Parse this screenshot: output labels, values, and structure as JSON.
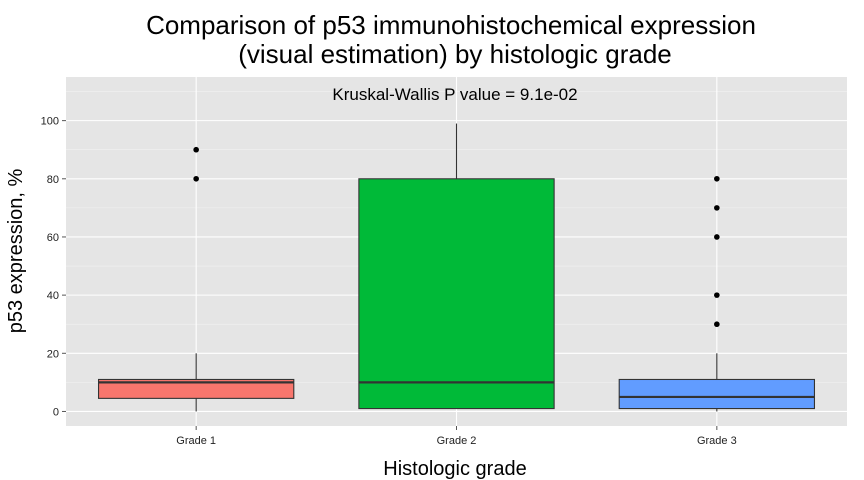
{
  "chart_data": {
    "type": "boxplot",
    "title_line1": "Comparison of p53 immunohistochemical expression",
    "title_line2": "(visual estimation) by histologic grade",
    "annotation": "Kruskal-Wallis P value = 9.1e-02",
    "xlabel": "Histologic grade",
    "ylabel": "p53 expression, %",
    "ylim": [
      -5,
      115
    ],
    "yticks": [
      0,
      20,
      40,
      60,
      80,
      100
    ],
    "ytick_labels": [
      "0",
      "20",
      "40",
      "60",
      "80",
      "100"
    ],
    "grid": true,
    "legend": "none",
    "categories": [
      "Grade 1",
      "Grade 2",
      "Grade 3"
    ],
    "boxes": [
      {
        "category": "Grade 1",
        "whisker_low": 0,
        "q1": 4.5,
        "median": 10,
        "q3": 11,
        "whisker_high": 20,
        "outliers": [
          80,
          90
        ],
        "color": "#F8766D"
      },
      {
        "category": "Grade 2",
        "whisker_low": 1,
        "q1": 1,
        "median": 10,
        "q3": 80,
        "whisker_high": 99,
        "outliers": [],
        "color": "#00BA38"
      },
      {
        "category": "Grade 3",
        "whisker_low": 0,
        "q1": 1,
        "median": 5,
        "q3": 11,
        "whisker_high": 20,
        "outliers": [
          30,
          40,
          60,
          70,
          80
        ],
        "color": "#619CFF"
      }
    ],
    "panel_color": "#E5E5E5"
  }
}
